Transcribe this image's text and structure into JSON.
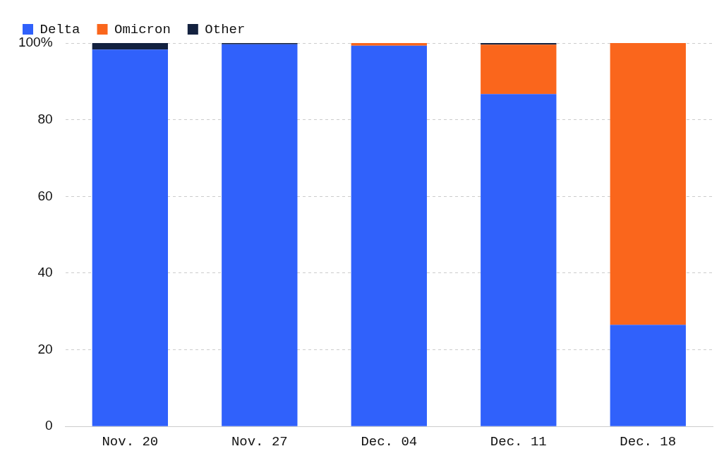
{
  "chart_data": {
    "type": "bar",
    "stacked": true,
    "categories": [
      "Nov. 20",
      "Nov. 27",
      "Dec. 04",
      "Dec. 11",
      "Dec. 18"
    ],
    "series": [
      {
        "name": "Delta",
        "color": "#3061fb",
        "values": [
          98.3,
          99.7,
          99.3,
          86.7,
          26.5
        ]
      },
      {
        "name": "Omicron",
        "color": "#fa661c",
        "values": [
          0,
          0,
          0.7,
          12.9,
          73.5
        ]
      },
      {
        "name": "Other",
        "color": "#13213f",
        "values": [
          1.7,
          0.3,
          0,
          0.4,
          0
        ]
      }
    ],
    "ylim": [
      0,
      100
    ],
    "yticks": [
      0,
      20,
      40,
      60,
      80,
      {
        "value": 100,
        "label": "100%"
      }
    ],
    "grid": "y",
    "legend": "top left"
  }
}
